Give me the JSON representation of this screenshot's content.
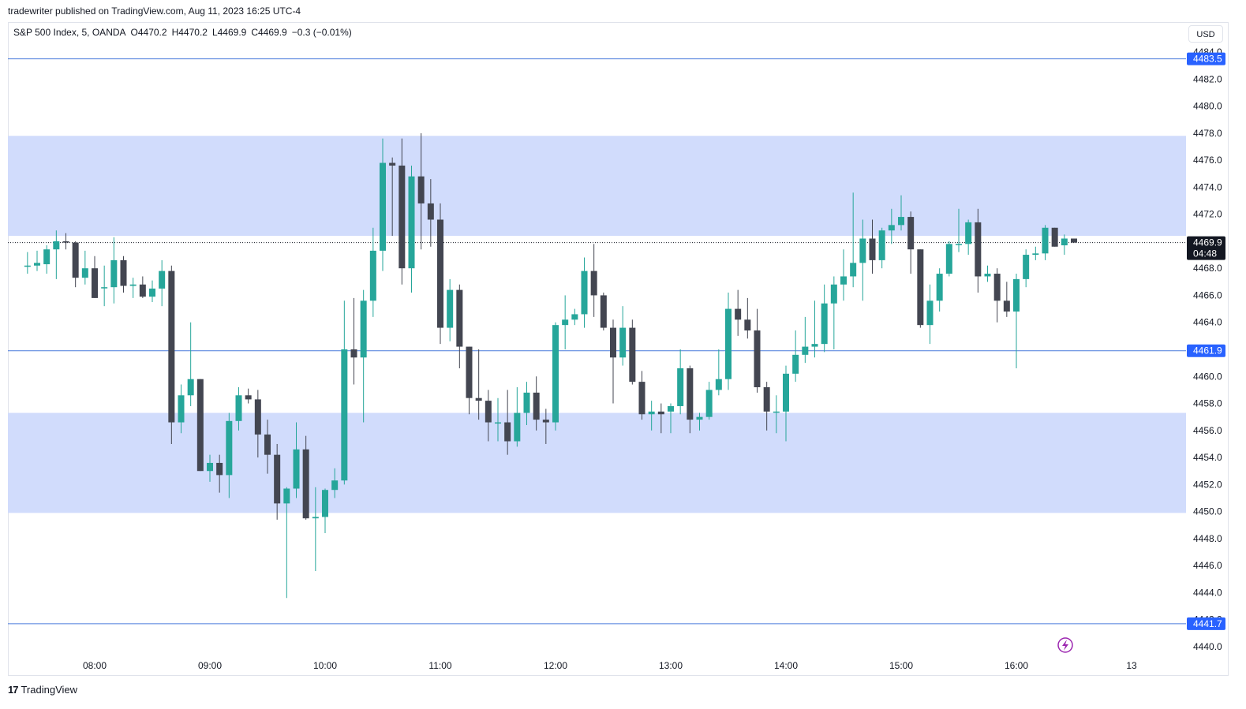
{
  "caption": "tradewriter published on TradingView.com, Aug 11, 2023 16:25 UTC-4",
  "legend": {
    "symbol": "S&P 500 Index, 5, OANDA",
    "open": "O4470.2",
    "high": "H4470.2",
    "low": "L4469.9",
    "close": "C4469.9",
    "change": "−0.3 (−0.01%)"
  },
  "currency": "USD",
  "brand": {
    "logo": "17",
    "name": "TradingView"
  },
  "colors": {
    "up": "#26a69a",
    "down": "#434651",
    "zone": "#d1dcfc",
    "hline": "#4a7bdc",
    "tag": "#2962ff",
    "current_tag": "#131722"
  },
  "chart_data": {
    "type": "candlestick",
    "title": "",
    "xlabel": "",
    "ylabel": "",
    "ylim": [
      4439,
      4485
    ],
    "grid": false,
    "y_ticks": [
      "4440.0",
      "4442.0",
      "4444.0",
      "4446.0",
      "4448.0",
      "4450.0",
      "4452.0",
      "4454.0",
      "4456.0",
      "4458.0",
      "4460.0",
      "4462.0",
      "4464.0",
      "4466.0",
      "4468.0",
      "4470.0",
      "4472.0",
      "4474.0",
      "4476.0",
      "4478.0",
      "4480.0",
      "4482.0",
      "4484.0"
    ],
    "x_ticks": [
      {
        "label": "08:00",
        "t": "08:00"
      },
      {
        "label": "09:00",
        "t": "09:00"
      },
      {
        "label": "10:00",
        "t": "10:00"
      },
      {
        "label": "11:00",
        "t": "11:00"
      },
      {
        "label": "12:00",
        "t": "12:00"
      },
      {
        "label": "13:00",
        "t": "13:00"
      },
      {
        "label": "14:00",
        "t": "14:00"
      },
      {
        "label": "15:00",
        "t": "15:00"
      },
      {
        "label": "16:00",
        "t": "16:00"
      },
      {
        "label": "13",
        "t": "17:00"
      }
    ],
    "zones": [
      {
        "from": 4470.4,
        "to": 4477.8
      },
      {
        "from": 4449.9,
        "to": 4457.3
      }
    ],
    "horizontal_lines": [
      {
        "price": 4483.5,
        "label": "4483.5"
      },
      {
        "price": 4461.9,
        "label": "4461.9"
      },
      {
        "price": 4441.7,
        "label": "4441.7"
      }
    ],
    "current_price": {
      "price": 4469.9,
      "label": "4469.9",
      "countdown": "04:48"
    },
    "candles": [
      {
        "t": "07:25",
        "o": 4468.2,
        "h": 4469.2,
        "l": 4467.6,
        "c": 4468.2
      },
      {
        "t": "07:30",
        "o": 4468.2,
        "h": 4469.3,
        "l": 4467.8,
        "c": 4468.4
      },
      {
        "t": "07:35",
        "o": 4468.3,
        "h": 4469.7,
        "l": 4467.6,
        "c": 4469.4
      },
      {
        "t": "07:40",
        "o": 4469.4,
        "h": 4470.8,
        "l": 4467.2,
        "c": 4470.0
      },
      {
        "t": "07:45",
        "o": 4470.0,
        "h": 4470.6,
        "l": 4469.4,
        "c": 4469.9
      },
      {
        "t": "07:50",
        "o": 4469.9,
        "h": 4470.0,
        "l": 4466.6,
        "c": 4467.3
      },
      {
        "t": "07:55",
        "o": 4467.3,
        "h": 4469.3,
        "l": 4466.8,
        "c": 4468.0
      },
      {
        "t": "08:00",
        "o": 4468.0,
        "h": 4468.9,
        "l": 4465.8,
        "c": 4465.8
      },
      {
        "t": "08:05",
        "o": 4466.6,
        "h": 4468.2,
        "l": 4465.2,
        "c": 4466.6
      },
      {
        "t": "08:10",
        "o": 4466.6,
        "h": 4470.3,
        "l": 4465.4,
        "c": 4468.6
      },
      {
        "t": "08:15",
        "o": 4468.6,
        "h": 4468.9,
        "l": 4466.2,
        "c": 4466.7
      },
      {
        "t": "08:20",
        "o": 4466.7,
        "h": 4467.3,
        "l": 4465.8,
        "c": 4466.8
      },
      {
        "t": "08:25",
        "o": 4466.8,
        "h": 4467.4,
        "l": 4465.8,
        "c": 4465.9
      },
      {
        "t": "08:30",
        "o": 4465.9,
        "h": 4467.1,
        "l": 4465.5,
        "c": 4466.5
      },
      {
        "t": "08:35",
        "o": 4466.5,
        "h": 4468.6,
        "l": 4465.2,
        "c": 4467.8
      },
      {
        "t": "08:40",
        "o": 4467.8,
        "h": 4468.2,
        "l": 4455.0,
        "c": 4456.6
      },
      {
        "t": "08:45",
        "o": 4456.6,
        "h": 4459.4,
        "l": 4455.8,
        "c": 4458.6
      },
      {
        "t": "08:50",
        "o": 4458.6,
        "h": 4464.0,
        "l": 4457.8,
        "c": 4459.8
      },
      {
        "t": "08:55",
        "o": 4459.8,
        "h": 4459.8,
        "l": 4453.0,
        "c": 4453.0
      },
      {
        "t": "09:00",
        "o": 4453.0,
        "h": 4454.2,
        "l": 4452.2,
        "c": 4453.6
      },
      {
        "t": "09:05",
        "o": 4453.6,
        "h": 4454.2,
        "l": 4451.4,
        "c": 4452.7
      },
      {
        "t": "09:10",
        "o": 4452.7,
        "h": 4457.3,
        "l": 4451.0,
        "c": 4456.7
      },
      {
        "t": "09:15",
        "o": 4456.7,
        "h": 4459.2,
        "l": 4456.0,
        "c": 4458.6
      },
      {
        "t": "09:20",
        "o": 4458.6,
        "h": 4459.1,
        "l": 4458.0,
        "c": 4458.3
      },
      {
        "t": "09:25",
        "o": 4458.3,
        "h": 4459.0,
        "l": 4454.0,
        "c": 4455.7
      },
      {
        "t": "09:30",
        "o": 4455.7,
        "h": 4456.8,
        "l": 4452.8,
        "c": 4454.2
      },
      {
        "t": "09:35",
        "o": 4454.2,
        "h": 4455.0,
        "l": 4449.4,
        "c": 4450.6
      },
      {
        "t": "09:40",
        "o": 4450.6,
        "h": 4451.8,
        "l": 4443.6,
        "c": 4451.7
      },
      {
        "t": "09:45",
        "o": 4451.7,
        "h": 4456.6,
        "l": 4451.0,
        "c": 4454.6
      },
      {
        "t": "09:50",
        "o": 4454.6,
        "h": 4455.6,
        "l": 4449.4,
        "c": 4449.5
      },
      {
        "t": "09:55",
        "o": 4449.5,
        "h": 4451.8,
        "l": 4445.6,
        "c": 4449.6
      },
      {
        "t": "10:00",
        "o": 4449.6,
        "h": 4451.7,
        "l": 4448.4,
        "c": 4451.6
      },
      {
        "t": "10:05",
        "o": 4451.6,
        "h": 4453.2,
        "l": 4451.0,
        "c": 4452.3
      },
      {
        "t": "10:10",
        "o": 4452.3,
        "h": 4465.6,
        "l": 4452.0,
        "c": 4462.0
      },
      {
        "t": "10:15",
        "o": 4462.0,
        "h": 4465.8,
        "l": 4459.4,
        "c": 4461.4
      },
      {
        "t": "10:20",
        "o": 4461.4,
        "h": 4466.4,
        "l": 4456.6,
        "c": 4465.6
      },
      {
        "t": "10:25",
        "o": 4465.6,
        "h": 4471.0,
        "l": 4464.4,
        "c": 4469.3
      },
      {
        "t": "10:30",
        "o": 4469.3,
        "h": 4477.6,
        "l": 4467.8,
        "c": 4475.8
      },
      {
        "t": "10:35",
        "o": 4475.8,
        "h": 4476.2,
        "l": 4470.4,
        "c": 4475.6
      },
      {
        "t": "10:40",
        "o": 4475.6,
        "h": 4477.6,
        "l": 4466.8,
        "c": 4468.0
      },
      {
        "t": "10:45",
        "o": 4468.0,
        "h": 4475.6,
        "l": 4466.2,
        "c": 4474.8
      },
      {
        "t": "10:50",
        "o": 4474.8,
        "h": 4478.0,
        "l": 4469.4,
        "c": 4472.8
      },
      {
        "t": "10:55",
        "o": 4472.8,
        "h": 4474.6,
        "l": 4469.6,
        "c": 4471.6
      },
      {
        "t": "11:00",
        "o": 4471.6,
        "h": 4472.8,
        "l": 4462.4,
        "c": 4463.6
      },
      {
        "t": "11:05",
        "o": 4463.6,
        "h": 4467.2,
        "l": 4462.6,
        "c": 4466.4
      },
      {
        "t": "11:10",
        "o": 4466.4,
        "h": 4466.8,
        "l": 4460.6,
        "c": 4462.2
      },
      {
        "t": "11:15",
        "o": 4462.2,
        "h": 4462.2,
        "l": 4457.2,
        "c": 4458.4
      },
      {
        "t": "11:20",
        "o": 4458.4,
        "h": 4462.0,
        "l": 4456.8,
        "c": 4458.2
      },
      {
        "t": "11:25",
        "o": 4458.2,
        "h": 4459.0,
        "l": 4455.2,
        "c": 4456.6
      },
      {
        "t": "11:30",
        "o": 4456.6,
        "h": 4458.4,
        "l": 4455.2,
        "c": 4456.6
      },
      {
        "t": "11:35",
        "o": 4456.6,
        "h": 4459.0,
        "l": 4454.2,
        "c": 4455.2
      },
      {
        "t": "11:40",
        "o": 4455.2,
        "h": 4459.2,
        "l": 4454.8,
        "c": 4457.3
      },
      {
        "t": "11:45",
        "o": 4457.3,
        "h": 4459.6,
        "l": 4456.4,
        "c": 4458.8
      },
      {
        "t": "11:50",
        "o": 4458.8,
        "h": 4460.0,
        "l": 4456.0,
        "c": 4456.8
      },
      {
        "t": "11:55",
        "o": 4456.8,
        "h": 4457.6,
        "l": 4455.0,
        "c": 4456.6
      },
      {
        "t": "12:00",
        "o": 4456.6,
        "h": 4464.0,
        "l": 4456.0,
        "c": 4463.8
      },
      {
        "t": "12:05",
        "o": 4463.8,
        "h": 4466.0,
        "l": 4462.0,
        "c": 4464.2
      },
      {
        "t": "12:10",
        "o": 4464.2,
        "h": 4465.0,
        "l": 4463.8,
        "c": 4464.6
      },
      {
        "t": "12:15",
        "o": 4464.6,
        "h": 4468.8,
        "l": 4463.6,
        "c": 4467.8
      },
      {
        "t": "12:20",
        "o": 4467.8,
        "h": 4469.8,
        "l": 4464.4,
        "c": 4466.0
      },
      {
        "t": "12:25",
        "o": 4466.0,
        "h": 4466.2,
        "l": 4463.4,
        "c": 4463.6
      },
      {
        "t": "12:30",
        "o": 4463.6,
        "h": 4464.2,
        "l": 4458.0,
        "c": 4461.4
      },
      {
        "t": "12:35",
        "o": 4461.4,
        "h": 4465.2,
        "l": 4460.8,
        "c": 4463.6
      },
      {
        "t": "12:40",
        "o": 4463.6,
        "h": 4464.2,
        "l": 4459.4,
        "c": 4459.6
      },
      {
        "t": "12:45",
        "o": 4459.6,
        "h": 4460.4,
        "l": 4456.8,
        "c": 4457.2
      },
      {
        "t": "12:50",
        "o": 4457.2,
        "h": 4458.2,
        "l": 4456.0,
        "c": 4457.4
      },
      {
        "t": "12:55",
        "o": 4457.4,
        "h": 4458.0,
        "l": 4455.8,
        "c": 4457.2
      },
      {
        "t": "13:00",
        "o": 4457.4,
        "h": 4458.0,
        "l": 4455.8,
        "c": 4457.8
      },
      {
        "t": "13:05",
        "o": 4457.8,
        "h": 4462.0,
        "l": 4457.2,
        "c": 4460.6
      },
      {
        "t": "13:10",
        "o": 4460.6,
        "h": 4460.8,
        "l": 4455.8,
        "c": 4456.8
      },
      {
        "t": "13:15",
        "o": 4456.8,
        "h": 4457.3,
        "l": 4456.0,
        "c": 4457.0
      },
      {
        "t": "13:20",
        "o": 4457.0,
        "h": 4459.6,
        "l": 4456.8,
        "c": 4459.0
      },
      {
        "t": "13:25",
        "o": 4459.0,
        "h": 4462.0,
        "l": 4458.6,
        "c": 4459.8
      },
      {
        "t": "13:30",
        "o": 4459.8,
        "h": 4466.2,
        "l": 4459.0,
        "c": 4465.0
      },
      {
        "t": "13:35",
        "o": 4465.0,
        "h": 4466.4,
        "l": 4463.0,
        "c": 4464.2
      },
      {
        "t": "13:40",
        "o": 4464.2,
        "h": 4465.8,
        "l": 4462.8,
        "c": 4463.4
      },
      {
        "t": "13:45",
        "o": 4463.4,
        "h": 4465.0,
        "l": 4458.8,
        "c": 4459.2
      },
      {
        "t": "13:50",
        "o": 4459.2,
        "h": 4459.6,
        "l": 4456.0,
        "c": 4457.4
      },
      {
        "t": "13:55",
        "o": 4457.4,
        "h": 4458.6,
        "l": 4455.8,
        "c": 4457.4
      },
      {
        "t": "14:00",
        "o": 4457.4,
        "h": 4460.8,
        "l": 4455.2,
        "c": 4460.2
      },
      {
        "t": "14:05",
        "o": 4460.2,
        "h": 4463.4,
        "l": 4459.6,
        "c": 4461.6
      },
      {
        "t": "14:10",
        "o": 4461.6,
        "h": 4464.4,
        "l": 4461.0,
        "c": 4462.2
      },
      {
        "t": "14:15",
        "o": 4462.2,
        "h": 4465.6,
        "l": 4461.4,
        "c": 4462.4
      },
      {
        "t": "14:20",
        "o": 4462.4,
        "h": 4466.8,
        "l": 4461.8,
        "c": 4465.4
      },
      {
        "t": "14:25",
        "o": 4465.4,
        "h": 4467.4,
        "l": 4462.0,
        "c": 4466.8
      },
      {
        "t": "14:30",
        "o": 4466.8,
        "h": 4469.4,
        "l": 4465.6,
        "c": 4467.4
      },
      {
        "t": "14:35",
        "o": 4467.4,
        "h": 4473.6,
        "l": 4466.6,
        "c": 4468.4
      },
      {
        "t": "14:40",
        "o": 4468.4,
        "h": 4471.6,
        "l": 4465.6,
        "c": 4470.2
      },
      {
        "t": "14:45",
        "o": 4470.2,
        "h": 4471.6,
        "l": 4467.6,
        "c": 4468.6
      },
      {
        "t": "14:50",
        "o": 4468.6,
        "h": 4471.0,
        "l": 4468.0,
        "c": 4470.8
      },
      {
        "t": "14:55",
        "o": 4470.8,
        "h": 4472.4,
        "l": 4469.8,
        "c": 4471.2
      },
      {
        "t": "15:00",
        "o": 4471.2,
        "h": 4473.4,
        "l": 4470.8,
        "c": 4471.8
      },
      {
        "t": "15:05",
        "o": 4471.8,
        "h": 4472.2,
        "l": 4467.6,
        "c": 4469.4
      },
      {
        "t": "15:10",
        "o": 4469.4,
        "h": 4469.4,
        "l": 4463.6,
        "c": 4463.8
      },
      {
        "t": "15:15",
        "o": 4463.8,
        "h": 4466.8,
        "l": 4462.4,
        "c": 4465.6
      },
      {
        "t": "15:20",
        "o": 4465.6,
        "h": 4468.0,
        "l": 4464.8,
        "c": 4467.6
      },
      {
        "t": "15:25",
        "o": 4467.6,
        "h": 4470.0,
        "l": 4467.4,
        "c": 4469.8
      },
      {
        "t": "15:30",
        "o": 4469.8,
        "h": 4472.4,
        "l": 4469.2,
        "c": 4469.8
      },
      {
        "t": "15:35",
        "o": 4469.8,
        "h": 4471.6,
        "l": 4469.0,
        "c": 4471.4
      },
      {
        "t": "15:40",
        "o": 4471.4,
        "h": 4472.4,
        "l": 4466.2,
        "c": 4467.4
      },
      {
        "t": "15:45",
        "o": 4467.4,
        "h": 4468.2,
        "l": 4467.0,
        "c": 4467.6
      },
      {
        "t": "15:50",
        "o": 4467.6,
        "h": 4468.0,
        "l": 4464.0,
        "c": 4465.6
      },
      {
        "t": "15:55",
        "o": 4465.6,
        "h": 4467.0,
        "l": 4464.4,
        "c": 4464.8
      },
      {
        "t": "16:00",
        "o": 4464.8,
        "h": 4467.6,
        "l": 4460.6,
        "c": 4467.2
      },
      {
        "t": "16:05",
        "o": 4467.2,
        "h": 4469.4,
        "l": 4466.6,
        "c": 4469.0
      },
      {
        "t": "16:10",
        "o": 4469.0,
        "h": 4469.6,
        "l": 4468.6,
        "c": 4469.1
      },
      {
        "t": "16:15",
        "o": 4469.1,
        "h": 4471.2,
        "l": 4468.6,
        "c": 4471.0
      },
      {
        "t": "16:20",
        "o": 4471.0,
        "h": 4471.0,
        "l": 4469.6,
        "c": 4469.6
      },
      {
        "t": "16:25",
        "o": 4469.7,
        "h": 4470.5,
        "l": 4469.0,
        "c": 4470.2
      },
      {
        "t": "16:30",
        "o": 4470.2,
        "h": 4470.2,
        "l": 4469.9,
        "c": 4469.9
      }
    ]
  }
}
